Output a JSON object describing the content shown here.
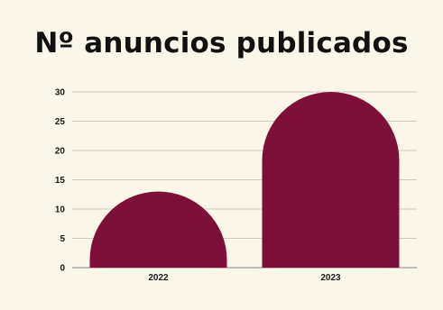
{
  "chart_data": {
    "type": "bar",
    "title": "Nº anuncios publicados",
    "xlabel": "",
    "ylabel": "",
    "categories": [
      "2022",
      "2023"
    ],
    "values": [
      13,
      30
    ],
    "ylim": [
      0,
      30
    ],
    "yticks": [
      0,
      5,
      10,
      15,
      20,
      25,
      30
    ],
    "grid": true,
    "legend": "none",
    "colors": {
      "bar": "#7c1038",
      "grid": "#cfcabd",
      "baseline": "#9a9a9a",
      "background": "#fbf6ea",
      "text": "#1a1a1a"
    }
  }
}
